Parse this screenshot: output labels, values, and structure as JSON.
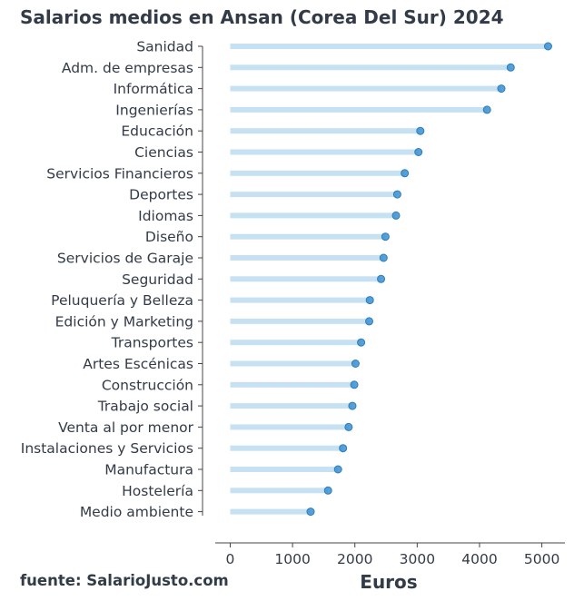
{
  "chart_data": {
    "type": "dot",
    "title": "Salarios medios en Ansan (Corea Del Sur) 2024",
    "xlabel": "Euros",
    "ylabel": "",
    "xlim": [
      -240,
      5370
    ],
    "xticks": [
      0,
      1000,
      2000,
      3000,
      4000,
      5000
    ],
    "xtick_labels": [
      "0",
      "1000",
      "2000",
      "3000",
      "4000",
      "5000"
    ],
    "grid": false,
    "legend": "none",
    "categories": [
      "Sanidad",
      "Adm. de empresas",
      "Informática",
      "Ingenierías",
      "Educación",
      "Ciencias",
      "Servicios Financieros",
      "Deportes",
      "Idiomas",
      "Diseño",
      "Servicios de Garaje",
      "Seguridad",
      "Peluquería y Belleza",
      "Edición y Marketing",
      "Transportes",
      "Artes Escénicas",
      "Construcción",
      "Trabajo social",
      "Venta al por menor",
      "Instalaciones y Servicios",
      "Manufactura",
      "Hostelería",
      "Medio ambiente"
    ],
    "values": [
      5100,
      4500,
      4350,
      4120,
      3050,
      3020,
      2800,
      2680,
      2660,
      2490,
      2460,
      2420,
      2240,
      2230,
      2100,
      2010,
      1990,
      1960,
      1900,
      1810,
      1730,
      1570,
      1290
    ],
    "colors": {
      "dot": "#3b8fd0",
      "stem": "#c6e2f2",
      "text": "#333b48",
      "axis": "#444444"
    }
  },
  "source": "fuente: SalarioJusto.com"
}
